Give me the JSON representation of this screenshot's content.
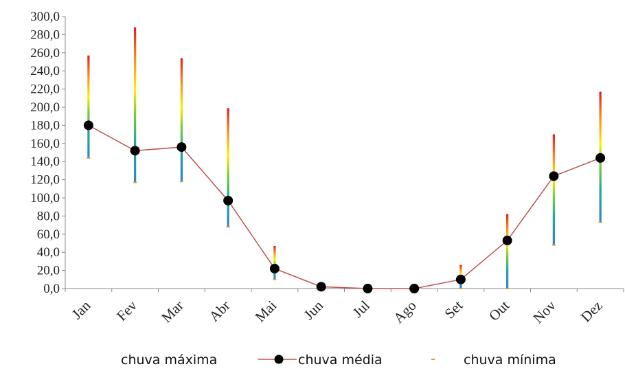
{
  "chart_data": {
    "type": "line",
    "categories": [
      "Jan",
      "Fev",
      "Mar",
      "Abr",
      "Mai",
      "Jun",
      "Jul",
      "Ago",
      "Set",
      "Out",
      "Nov",
      "Dez"
    ],
    "series": [
      {
        "name": "chuva máxima",
        "values": [
          257,
          288,
          254,
          199,
          47,
          4,
          0,
          0,
          26,
          82,
          170,
          217
        ]
      },
      {
        "name": "chuva média",
        "values": [
          180,
          152,
          156,
          97,
          22,
          2,
          0,
          0,
          10,
          53,
          124,
          144
        ]
      },
      {
        "name": "chuva mínima",
        "values": [
          144,
          117,
          118,
          68,
          10,
          0,
          0,
          0,
          0,
          0,
          48,
          73
        ]
      }
    ],
    "ylim": [
      0,
      300
    ],
    "yticks": [
      "0,0",
      "20,0",
      "40,0",
      "60,0",
      "80,0",
      "100,0",
      "120,0",
      "140,0",
      "160,0",
      "180,0",
      "200,0",
      "220,0",
      "240,0",
      "260,0",
      "280,0",
      "300,0"
    ],
    "line_color": "#c0504d",
    "marker_color": "#000000",
    "minimum_marker_color": "#d4a23a",
    "legend_position": "bottom"
  }
}
